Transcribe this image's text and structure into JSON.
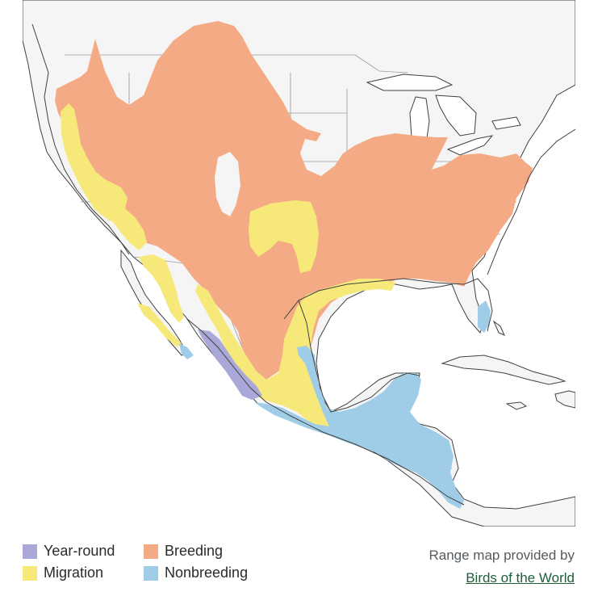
{
  "map": {
    "colors": {
      "land": "#f5f5f6",
      "water": "#ffffff",
      "border": "#9a9a9a",
      "coast": "#404040",
      "breeding": "#f4ab85",
      "migration": "#f6e97a",
      "nonbreeding": "#9fcde8",
      "year_round": "#aaa8d8"
    }
  },
  "legend": {
    "items": [
      {
        "key": "year_round",
        "label": "Year-round",
        "color": "#aaa8d8"
      },
      {
        "key": "breeding",
        "label": "Breeding",
        "color": "#f4ab85"
      },
      {
        "key": "migration",
        "label": "Migration",
        "color": "#f6e97a"
      },
      {
        "key": "nonbreeding",
        "label": "Nonbreeding",
        "color": "#9fcde8"
      }
    ]
  },
  "credit": {
    "text": "Range map provided by",
    "link_text": "Birds of the World",
    "link_color": "#1f5d3a"
  }
}
